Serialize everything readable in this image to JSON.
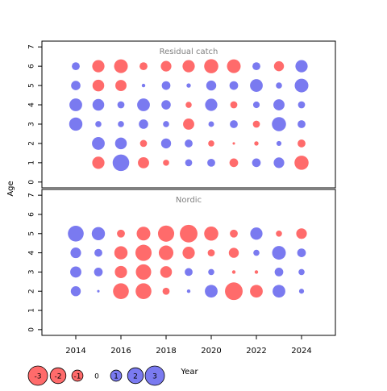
{
  "colors": {
    "negative": "#FF6B6B",
    "positive": "#7A7AF0",
    "panel_title": "#808080",
    "axis": "#000000"
  },
  "chart_data": {
    "type": "scatter",
    "subtype": "bubble-residuals",
    "ylabel": "Age",
    "xlabel": "Year",
    "x_ticks": [
      2014,
      2016,
      2018,
      2020,
      2022,
      2024
    ],
    "y_ticks": [
      0,
      1,
      2,
      3,
      4,
      5,
      6,
      7
    ],
    "xlim": [
      2012.5,
      2025.5
    ],
    "ylim": [
      -0.3,
      7.3
    ],
    "legend": {
      "placement": "bottom-left",
      "values": [
        -3,
        -2,
        -1,
        0,
        1,
        2,
        3
      ],
      "labels": [
        "-3",
        "-2",
        "-1",
        "0",
        "1",
        "2",
        "3"
      ]
    },
    "panels": [
      {
        "title": "Residual catch",
        "years": [
          2014,
          2015,
          2016,
          2017,
          2018,
          2019,
          2020,
          2021,
          2022,
          2023,
          2024
        ],
        "ages": [
          1,
          2,
          3,
          4,
          5,
          6
        ],
        "residuals": {
          "1": [
            null,
            -1.2,
            2.2,
            -1.0,
            -0.3,
            0.4,
            0.5,
            -0.6,
            0.6,
            0.9,
            -1.6
          ],
          "2": [
            null,
            1.3,
            1.1,
            -0.4,
            0.8,
            0.5,
            -0.3,
            -0.05,
            -0.15,
            0.2,
            -0.5
          ],
          "3": [
            1.4,
            0.3,
            0.3,
            0.7,
            0.3,
            -1.0,
            0.25,
            0.5,
            -0.4,
            1.6,
            0.5
          ],
          "4": [
            1.3,
            1.1,
            0.4,
            1.3,
            0.7,
            -0.3,
            1.2,
            -0.4,
            0.35,
            1.0,
            0.4
          ],
          "5": [
            0.7,
            -1.1,
            -1.0,
            0.1,
            0.6,
            0.15,
            0.8,
            0.6,
            1.3,
            0.3,
            1.5
          ],
          "6": [
            0.5,
            -1.2,
            -1.5,
            -0.5,
            -0.9,
            -1.2,
            -1.6,
            -1.5,
            0.5,
            -0.8,
            1.2
          ]
        }
      },
      {
        "title": "Nordic",
        "years": [
          2014,
          2015,
          2016,
          2017,
          2018,
          2019,
          2020,
          2021,
          2022,
          2023,
          2024
        ],
        "ages": [
          2,
          3,
          4,
          5
        ],
        "residuals": {
          "2": [
            0.8,
            0.05,
            -2.0,
            -2.0,
            -0.4,
            0.1,
            1.3,
            -2.5,
            -1.3,
            1.3,
            0.2
          ],
          "3": [
            1.0,
            0.6,
            -1.2,
            -1.9,
            -1.1,
            0.5,
            0.3,
            -0.1,
            -0.1,
            0.6,
            0.3
          ],
          "4": [
            0.9,
            0.5,
            -1.4,
            -2.1,
            -1.7,
            -1.2,
            -0.4,
            -0.8,
            0.3,
            1.5,
            0.6
          ],
          "5": [
            2.0,
            1.4,
            -0.5,
            -1.5,
            -2.1,
            -2.5,
            -1.6,
            -0.5,
            1.2,
            -0.3,
            -0.9
          ]
        }
      }
    ]
  }
}
